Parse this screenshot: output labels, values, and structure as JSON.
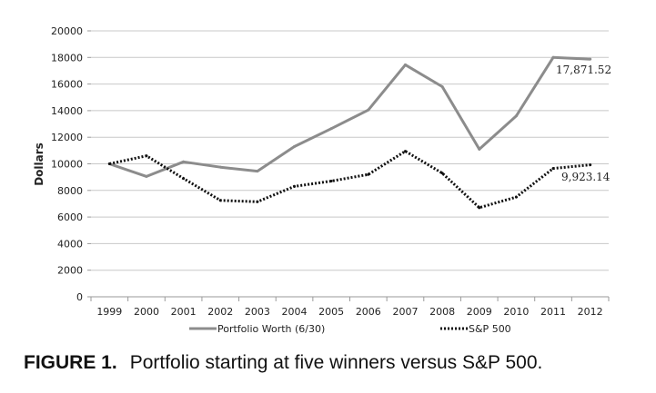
{
  "chart_data": {
    "type": "line",
    "categories": [
      "1999",
      "2000",
      "2001",
      "2002",
      "2003",
      "2004",
      "2005",
      "2006",
      "2007",
      "2008",
      "2009",
      "2010",
      "2011",
      "2012"
    ],
    "ylabel": "Dollars",
    "xlabel": "",
    "ylim": [
      0,
      20000
    ],
    "yticks": [
      0,
      2000,
      4000,
      6000,
      8000,
      10000,
      12000,
      14000,
      16000,
      18000,
      20000
    ],
    "grid": true,
    "legend_position": "bottom",
    "series": [
      {
        "name": "Portfolio Worth (6/30)",
        "style": "solid",
        "color": "#8c8c8c",
        "values": [
          10000,
          9050,
          10150,
          9750,
          9450,
          11300,
          12650,
          14050,
          17450,
          15800,
          11100,
          13600,
          18000,
          17871.52
        ]
      },
      {
        "name": "S&P 500",
        "style": "dotted",
        "color": "#111111",
        "values": [
          10000,
          10600,
          8900,
          7250,
          7150,
          8300,
          8700,
          9200,
          10950,
          9300,
          6700,
          7500,
          9650,
          9923.14
        ]
      }
    ],
    "annotations": [
      "17,871.52",
      "9,923.14"
    ]
  },
  "caption": {
    "figure_label": "FIGURE 1.",
    "text": "Portfolio starting at five winners versus S&P 500."
  }
}
